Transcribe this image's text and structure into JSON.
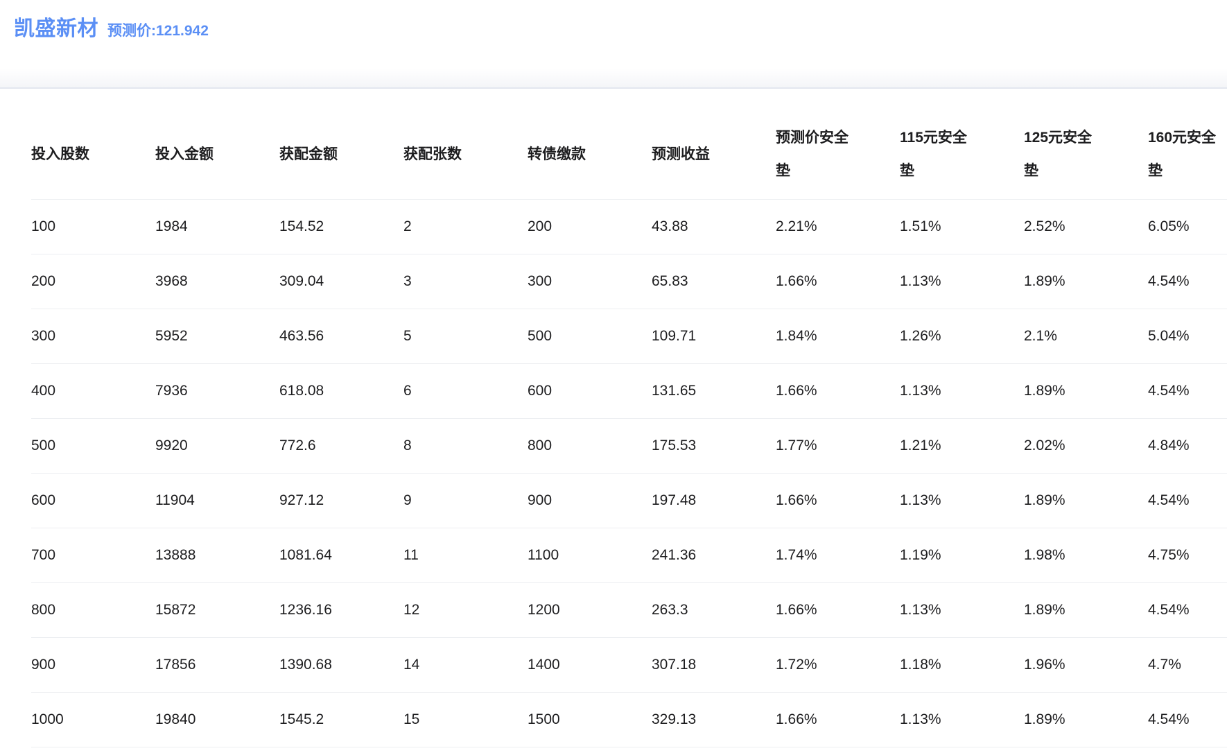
{
  "page": {
    "title": "凯盛新材",
    "subtitle": "预测价:121.942"
  },
  "colors": {
    "accent": "#5b8ff5",
    "row_border": "#eceef1",
    "band_border": "#e3e7ef"
  },
  "table": {
    "columns": [
      "投入股数",
      "投入金额",
      "获配金额",
      "获配张数",
      "转债缴款",
      "预测收益",
      "预测价安全\n垫",
      "115元安全\n垫",
      "125元安全\n垫",
      "160元安全\n垫"
    ],
    "rows": [
      [
        "100",
        "1984",
        "154.52",
        "2",
        "200",
        "43.88",
        "2.21%",
        "1.51%",
        "2.52%",
        "6.05%"
      ],
      [
        "200",
        "3968",
        "309.04",
        "3",
        "300",
        "65.83",
        "1.66%",
        "1.13%",
        "1.89%",
        "4.54%"
      ],
      [
        "300",
        "5952",
        "463.56",
        "5",
        "500",
        "109.71",
        "1.84%",
        "1.26%",
        "2.1%",
        "5.04%"
      ],
      [
        "400",
        "7936",
        "618.08",
        "6",
        "600",
        "131.65",
        "1.66%",
        "1.13%",
        "1.89%",
        "4.54%"
      ],
      [
        "500",
        "9920",
        "772.6",
        "8",
        "800",
        "175.53",
        "1.77%",
        "1.21%",
        "2.02%",
        "4.84%"
      ],
      [
        "600",
        "11904",
        "927.12",
        "9",
        "900",
        "197.48",
        "1.66%",
        "1.13%",
        "1.89%",
        "4.54%"
      ],
      [
        "700",
        "13888",
        "1081.64",
        "11",
        "1100",
        "241.36",
        "1.74%",
        "1.19%",
        "1.98%",
        "4.75%"
      ],
      [
        "800",
        "15872",
        "1236.16",
        "12",
        "1200",
        "263.3",
        "1.66%",
        "1.13%",
        "1.89%",
        "4.54%"
      ],
      [
        "900",
        "17856",
        "1390.68",
        "14",
        "1400",
        "307.18",
        "1.72%",
        "1.18%",
        "1.96%",
        "4.7%"
      ],
      [
        "1000",
        "19840",
        "1545.2",
        "15",
        "1500",
        "329.13",
        "1.66%",
        "1.13%",
        "1.89%",
        "4.54%"
      ]
    ]
  }
}
